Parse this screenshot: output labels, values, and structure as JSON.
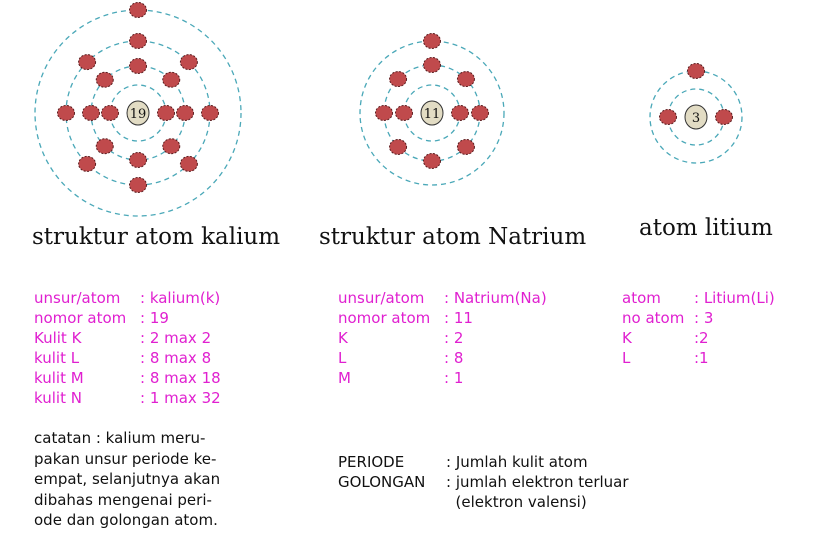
{
  "colors": {
    "electron": "#c04a4c",
    "ring": "#4aa8b8",
    "nucleus": "#e2dcc4",
    "info_text": "#e020d0"
  },
  "atoms": [
    {
      "name": "kalium",
      "nucleus_label": "19",
      "shells": [
        2,
        8,
        8,
        1
      ],
      "title": "struktur atom kalium"
    },
    {
      "name": "natrium",
      "nucleus_label": "11",
      "shells": [
        2,
        8,
        1
      ],
      "title": "struktur atom Natrium"
    },
    {
      "name": "litium",
      "nucleus_label": "3",
      "shells": [
        2,
        1
      ],
      "title": "atom litium"
    }
  ],
  "kalium_info": [
    {
      "k": "unsur/atom",
      "v": ": kalium(k)"
    },
    {
      "k": "nomor atom",
      "v": ": 19"
    },
    {
      "k": "Kulit K",
      "v": ": 2 max 2"
    },
    {
      "k": "kulit L",
      "v": ": 8 max 8"
    },
    {
      "k": "kulit M",
      "v": ": 8 max 18"
    },
    {
      "k": "kulit N",
      "v": ": 1 max 32"
    }
  ],
  "natrium_info": [
    {
      "k": "unsur/atom",
      "v": ": Natrium(Na)"
    },
    {
      "k": "nomor atom",
      "v": ": 11"
    },
    {
      "k": "K",
      "v": ": 2"
    },
    {
      "k": "L",
      "v": ": 8"
    },
    {
      "k": "M",
      "v": ": 1"
    }
  ],
  "litium_info": [
    {
      "k": "atom",
      "v": ": Litium(Li)"
    },
    {
      "k": "no atom",
      "v": ": 3"
    },
    {
      "k": "K",
      "v": ":2"
    },
    {
      "k": "L",
      "v": ":1"
    }
  ],
  "note": [
    "catatan : kalium meru-",
    "pakan unsur periode ke-",
    "empat, selanjutnya akan",
    "dibahas mengenai peri-",
    "ode dan golongan atom."
  ],
  "definitions": [
    {
      "k": "PERIODE",
      "v": ": Jumlah kulit atom"
    },
    {
      "k": "GOLONGAN",
      "v": ": jumlah elektron terluar"
    },
    {
      "k": "",
      "v": "  (elektron valensi)"
    }
  ]
}
